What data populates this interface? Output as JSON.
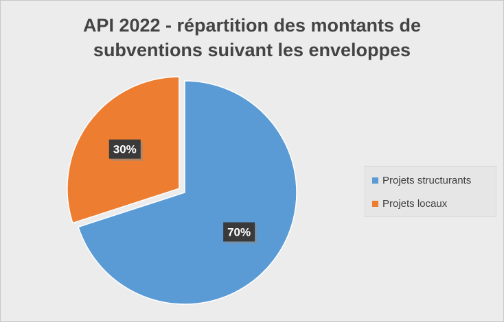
{
  "chart_data": {
    "type": "pie",
    "title_line1": "API 2022 - répartition des montants de",
    "title_line2": "subventions suivant les enveloppes",
    "categories": [
      "Projets structurants",
      "Projets locaux"
    ],
    "values": [
      70,
      30
    ],
    "data_labels": [
      "70%",
      "30%"
    ],
    "colors": [
      "#5b9bd5",
      "#ed7d31"
    ],
    "legend_position": "right",
    "exploded_slice": "Projets locaux"
  }
}
